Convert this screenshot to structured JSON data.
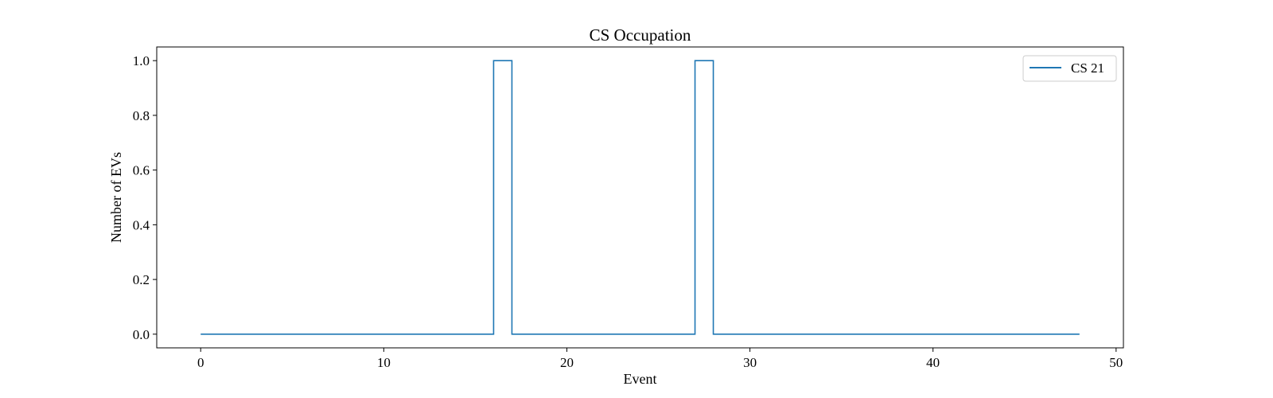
{
  "chart_data": {
    "type": "line",
    "title": "CS Occupation",
    "xlabel": "Event",
    "ylabel": "Number of EVs",
    "xlim": [
      -2.4,
      50.4
    ],
    "ylim": [
      -0.05,
      1.05
    ],
    "x_ticks": [
      0,
      10,
      20,
      30,
      40,
      50
    ],
    "y_ticks": [
      0.0,
      0.2,
      0.4,
      0.6,
      0.8,
      1.0
    ],
    "x_tick_labels": [
      "0",
      "10",
      "20",
      "30",
      "40",
      "50"
    ],
    "y_tick_labels": [
      "0.0",
      "0.2",
      "0.4",
      "0.6",
      "0.8",
      "1.0"
    ],
    "grid": false,
    "legend_position": "top-right",
    "step": "post",
    "series": [
      {
        "name": "CS 21",
        "color": "#1f77b4",
        "x": [
          0,
          1,
          2,
          3,
          4,
          5,
          6,
          7,
          8,
          9,
          10,
          11,
          12,
          13,
          14,
          15,
          16,
          17,
          18,
          19,
          20,
          21,
          22,
          23,
          24,
          25,
          26,
          27,
          28,
          29,
          30,
          31,
          32,
          33,
          34,
          35,
          36,
          37,
          38,
          39,
          40,
          41,
          42,
          43,
          44,
          45,
          46,
          47,
          48
        ],
        "values": [
          0,
          0,
          0,
          0,
          0,
          0,
          0,
          0,
          0,
          0,
          0,
          0,
          0,
          0,
          0,
          0,
          1,
          0,
          0,
          0,
          0,
          0,
          0,
          0,
          0,
          0,
          0,
          1,
          0,
          0,
          0,
          0,
          0,
          0,
          0,
          0,
          0,
          0,
          0,
          0,
          0,
          0,
          0,
          0,
          0,
          0,
          0,
          0,
          0
        ]
      }
    ]
  }
}
